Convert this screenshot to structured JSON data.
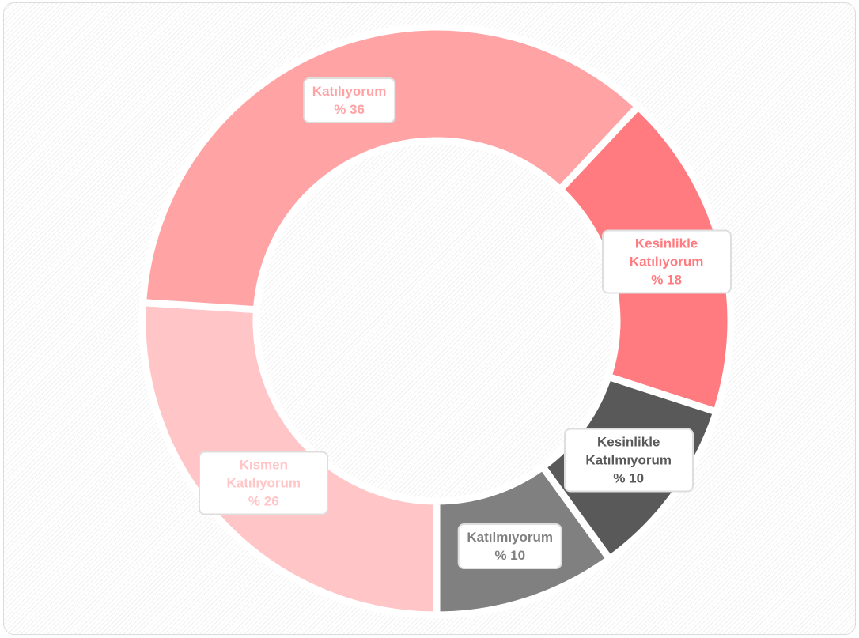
{
  "chart_data": {
    "type": "donut",
    "categories": [
      "Kısmen Katılıyorum",
      "Katılıyorum",
      "Kesinlikle Katılıyorum",
      "Kesinlikle Katılmıyorum",
      "Katılmıyorum"
    ],
    "values": [
      26,
      36,
      18,
      10,
      10
    ],
    "value_labels": [
      "% 26",
      "% 36",
      "% 18",
      "% 10",
      "% 10"
    ],
    "colors": [
      "#ffc5c7",
      "#ffa3a5",
      "#ff7b80",
      "#595959",
      "#808080"
    ]
  }
}
